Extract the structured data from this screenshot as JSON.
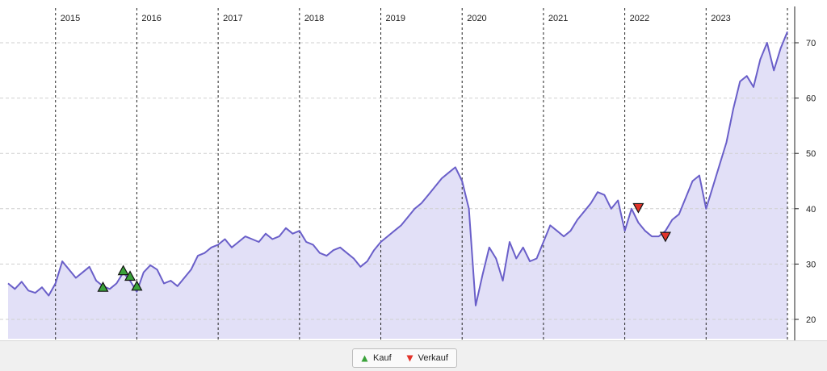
{
  "chart_data": {
    "type": "area",
    "title": "",
    "xlabel": "",
    "ylabel": "",
    "x_range": [
      "2014-06",
      "2024-01"
    ],
    "ylim": [
      16.5,
      77
    ],
    "y_ticks": [
      20,
      30,
      40,
      50,
      60,
      70
    ],
    "y_axis_position": "right",
    "year_markers": [
      {
        "label": "2015",
        "date": "2015-01"
      },
      {
        "label": "2016",
        "date": "2016-01"
      },
      {
        "label": "2017",
        "date": "2017-01"
      },
      {
        "label": "2018",
        "date": "2018-01"
      },
      {
        "label": "2019",
        "date": "2019-01"
      },
      {
        "label": "2020",
        "date": "2020-01"
      },
      {
        "label": "2021",
        "date": "2021-01"
      },
      {
        "label": "2022",
        "date": "2022-01"
      },
      {
        "label": "2023",
        "date": "2023-01"
      },
      {
        "label": "",
        "date": "2024-01"
      }
    ],
    "grid": "horizontal dashed",
    "series": [
      {
        "x": [
          "2014-06",
          "2014-07",
          "2014-08",
          "2014-09",
          "2014-10",
          "2014-11",
          "2014-12",
          "2015-01",
          "2015-02",
          "2015-03",
          "2015-04",
          "2015-05",
          "2015-06",
          "2015-07",
          "2015-08",
          "2015-09",
          "2015-10",
          "2015-11",
          "2015-12",
          "2016-01",
          "2016-02",
          "2016-03",
          "2016-04",
          "2016-05",
          "2016-06",
          "2016-07",
          "2016-08",
          "2016-09",
          "2016-10",
          "2016-11",
          "2016-12",
          "2017-01",
          "2017-02",
          "2017-03",
          "2017-04",
          "2017-05",
          "2017-06",
          "2017-07",
          "2017-08",
          "2017-09",
          "2017-10",
          "2017-11",
          "2017-12",
          "2018-01",
          "2018-02",
          "2018-03",
          "2018-04",
          "2018-05",
          "2018-06",
          "2018-07",
          "2018-08",
          "2018-09",
          "2018-10",
          "2018-11",
          "2018-12",
          "2019-01",
          "2019-02",
          "2019-03",
          "2019-04",
          "2019-05",
          "2019-06",
          "2019-07",
          "2019-08",
          "2019-09",
          "2019-10",
          "2019-11",
          "2019-12",
          "2020-01",
          "2020-02",
          "2020-03",
          "2020-04",
          "2020-05",
          "2020-06",
          "2020-07",
          "2020-08",
          "2020-09",
          "2020-10",
          "2020-11",
          "2020-12",
          "2021-01",
          "2021-02",
          "2021-03",
          "2021-04",
          "2021-05",
          "2021-06",
          "2021-07",
          "2021-08",
          "2021-09",
          "2021-10",
          "2021-11",
          "2021-12",
          "2022-01",
          "2022-02",
          "2022-03",
          "2022-04",
          "2022-05",
          "2022-06",
          "2022-07",
          "2022-08",
          "2022-09",
          "2022-10",
          "2022-11",
          "2022-12",
          "2023-01",
          "2023-02",
          "2023-03",
          "2023-04",
          "2023-05",
          "2023-06",
          "2023-07",
          "2023-08",
          "2023-09",
          "2023-10",
          "2023-11",
          "2023-12",
          "2024-01"
        ],
        "values": [
          26.5,
          25.5,
          26.8,
          25.2,
          24.8,
          25.8,
          24.3,
          26.5,
          30.5,
          29.0,
          27.5,
          28.5,
          29.5,
          27.0,
          26.0,
          25.5,
          26.5,
          28.5,
          27.0,
          25.0,
          28.5,
          29.8,
          29.0,
          26.5,
          27.0,
          26.0,
          27.5,
          29.0,
          31.5,
          32.0,
          33.0,
          33.5,
          34.5,
          33.0,
          34.0,
          35.0,
          34.5,
          34.0,
          35.5,
          34.5,
          35.0,
          36.5,
          35.5,
          36.0,
          34.0,
          33.5,
          32.0,
          31.5,
          32.5,
          33.0,
          32.0,
          31.0,
          29.5,
          30.5,
          32.5,
          34.0,
          35.0,
          36.0,
          37.0,
          38.5,
          40.0,
          41.0,
          42.5,
          44.0,
          45.5,
          46.5,
          47.5,
          45.0,
          40.0,
          22.5,
          28.0,
          33.0,
          31.0,
          27.0,
          34.0,
          31.0,
          33.0,
          30.5,
          31.0,
          34.0,
          37.0,
          36.0,
          35.0,
          36.0,
          38.0,
          39.5,
          41.0,
          43.0,
          42.5,
          40.0,
          41.5,
          36.0,
          40.0,
          37.5,
          36.0,
          35.0,
          35.0,
          36.0,
          38.0,
          39.0,
          42.0,
          45.0,
          46.0,
          40.0,
          44.0,
          48.0,
          52.0,
          58.0,
          63.0,
          64.0,
          62.0,
          67.0,
          70.0,
          65.0,
          69.0,
          72.0
        ]
      }
    ],
    "buy_signals": [
      {
        "x": "2015-08",
        "y": 25.8
      },
      {
        "x": "2015-11",
        "y": 28.8
      },
      {
        "x": "2015-12",
        "y": 27.8
      },
      {
        "x": "2016-01",
        "y": 26.0
      }
    ],
    "sell_signals": [
      {
        "x": "2022-03",
        "y": 40.2
      },
      {
        "x": "2022-07",
        "y": 35.0
      }
    ],
    "legend": {
      "position": "bottom-center",
      "items": [
        "Kauf",
        "Verkauf"
      ]
    },
    "colors": {
      "line": "#6a5fc9",
      "fill": "#e2e0f7",
      "buy": "#3aa23a",
      "sell": "#e2332a"
    }
  }
}
